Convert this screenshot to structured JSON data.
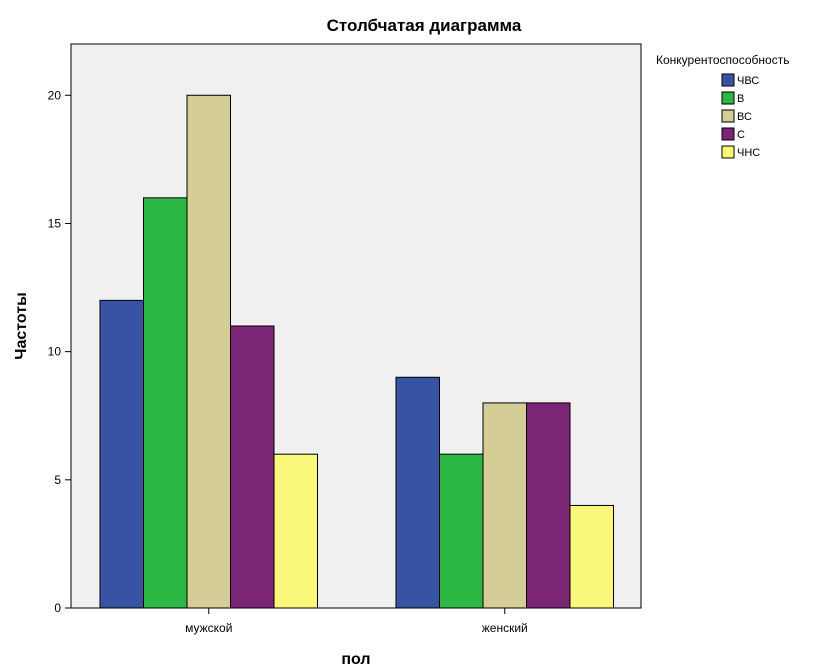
{
  "chart_data": {
    "type": "bar",
    "title": "Столбчатая диаграмма",
    "xlabel": "пол",
    "ylabel": "Частоты",
    "categories": [
      "мужской",
      "женский"
    ],
    "ylim": [
      0,
      22
    ],
    "yticks": [
      0,
      5,
      10,
      15,
      20
    ],
    "grid": false,
    "legend": {
      "title": "Конкурентоспособность",
      "position": "right"
    },
    "series": [
      {
        "name": "ЧВС",
        "color": "#3953a4",
        "values": [
          12,
          9
        ]
      },
      {
        "name": "В",
        "color": "#2db744",
        "values": [
          16,
          6
        ]
      },
      {
        "name": "ВС",
        "color": "#d4ce96",
        "values": [
          20,
          8
        ]
      },
      {
        "name": "С",
        "color": "#7b2575",
        "values": [
          11,
          8
        ]
      },
      {
        "name": "ЧНС",
        "color": "#fbf77a",
        "values": [
          6,
          4
        ]
      }
    ]
  }
}
